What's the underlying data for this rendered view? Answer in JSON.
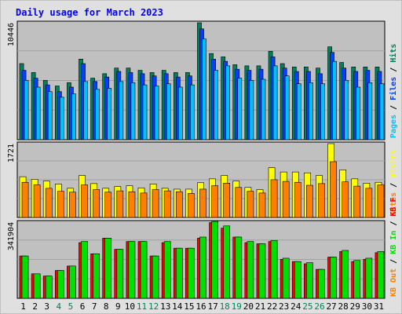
{
  "title": "Daily usage for March 2023",
  "colors": {
    "background": "#e0e0e0",
    "panel": "#c0c0c0",
    "title": "#0000ff",
    "hits": "#00805c",
    "files": "#0040ff",
    "pages": "#00c0ff",
    "visits": "#ffff00",
    "sites": "#ff8000",
    "kbin": "#00e000",
    "kbout": "#ff0000",
    "axis_label": "#000000",
    "weekend_label": "#00805c"
  },
  "chart_data": [
    {
      "type": "bar",
      "title": "Daily usage for March 2023",
      "panel": "top",
      "ymax_label": "10446",
      "legend": [
        "Hits",
        "Files",
        "Pages"
      ],
      "categories": [
        "1",
        "2",
        "3",
        "4",
        "5",
        "6",
        "7",
        "8",
        "9",
        "10",
        "11",
        "12",
        "13",
        "14",
        "15",
        "16",
        "17",
        "18",
        "19",
        "20",
        "21",
        "22",
        "23",
        "24",
        "25",
        "26",
        "27",
        "28",
        "29",
        "30",
        "31"
      ],
      "ylim": [
        0,
        10446
      ],
      "series": [
        {
          "name": "Hits",
          "values": [
            6800,
            6000,
            5300,
            4800,
            5100,
            7200,
            5500,
            5900,
            6400,
            6400,
            6200,
            6000,
            6200,
            6000,
            6000,
            10446,
            7700,
            7400,
            6700,
            6600,
            6600,
            7900,
            6800,
            6500,
            6500,
            6400,
            8300,
            6900,
            6500,
            6500,
            6500
          ]
        },
        {
          "name": "Files",
          "values": [
            6200,
            5500,
            4900,
            4300,
            4700,
            6800,
            5200,
            5600,
            6100,
            6000,
            5900,
            5700,
            5900,
            5600,
            5700,
            9900,
            7200,
            7000,
            6300,
            6200,
            6300,
            7400,
            6400,
            6100,
            6100,
            5900,
            7800,
            6400,
            6100,
            6200,
            6100
          ]
        },
        {
          "name": "Pages",
          "values": [
            5300,
            4700,
            4300,
            3800,
            4100,
            5200,
            4500,
            4600,
            5200,
            5100,
            4900,
            4800,
            5000,
            4700,
            4900,
            9000,
            6200,
            6600,
            5500,
            5300,
            5400,
            6600,
            5700,
            5000,
            5100,
            5000,
            7000,
            5300,
            4700,
            5100,
            5000
          ]
        }
      ]
    },
    {
      "type": "bar",
      "panel": "middle",
      "ymax_label": "1721",
      "legend": [
        "Visits",
        "Sites"
      ],
      "categories": [
        "1",
        "2",
        "3",
        "4",
        "5",
        "6",
        "7",
        "8",
        "9",
        "10",
        "11",
        "12",
        "13",
        "14",
        "15",
        "16",
        "17",
        "18",
        "19",
        "20",
        "21",
        "22",
        "23",
        "24",
        "25",
        "26",
        "27",
        "28",
        "29",
        "30",
        "31"
      ],
      "ylim": [
        0,
        1721
      ],
      "series": [
        {
          "name": "Visits",
          "values": [
            950,
            890,
            850,
            780,
            680,
            980,
            790,
            680,
            720,
            740,
            690,
            780,
            680,
            660,
            660,
            810,
            900,
            980,
            850,
            700,
            650,
            1160,
            1060,
            1060,
            1040,
            980,
            1721,
            1110,
            900,
            800,
            820
          ]
        },
        {
          "name": "Sites",
          "values": [
            820,
            760,
            680,
            610,
            590,
            760,
            650,
            590,
            620,
            600,
            570,
            650,
            620,
            600,
            560,
            660,
            740,
            800,
            700,
            610,
            570,
            880,
            840,
            820,
            750,
            790,
            1300,
            830,
            730,
            680,
            760
          ]
        }
      ]
    },
    {
      "type": "bar",
      "panel": "bottom",
      "ymax_label": "341904",
      "legend": [
        "KB F",
        "KB In",
        "KB Out"
      ],
      "categories": [
        "1",
        "2",
        "3",
        "4",
        "5",
        "6",
        "7",
        "8",
        "9",
        "10",
        "11",
        "12",
        "13",
        "14",
        "15",
        "16",
        "17",
        "18",
        "19",
        "20",
        "21",
        "22",
        "23",
        "24",
        "25",
        "26",
        "27",
        "28",
        "29",
        "30",
        "31"
      ],
      "ylim": [
        0,
        341904
      ],
      "series": [
        {
          "name": "KB F",
          "values": [
            190000,
            110000,
            100000,
            125000,
            145000,
            250000,
            200000,
            270000,
            220000,
            255000,
            255000,
            190000,
            250000,
            225000,
            225000,
            270000,
            340000,
            315000,
            275000,
            250000,
            245000,
            255000,
            175000,
            165000,
            155000,
            130000,
            185000,
            210000,
            165000,
            175000,
            205000
          ]
        },
        {
          "name": "KB In",
          "values": [
            190000,
            110000,
            100000,
            125000,
            145000,
            255000,
            200000,
            270000,
            220000,
            255000,
            255000,
            190000,
            255000,
            225000,
            225000,
            275000,
            345000,
            325000,
            275000,
            255000,
            245000,
            260000,
            180000,
            165000,
            160000,
            130000,
            185000,
            215000,
            170000,
            180000,
            210000
          ]
        }
      ],
      "weekend_days": [
        "4",
        "5",
        "11",
        "12",
        "18",
        "19",
        "25",
        "26"
      ]
    }
  ]
}
